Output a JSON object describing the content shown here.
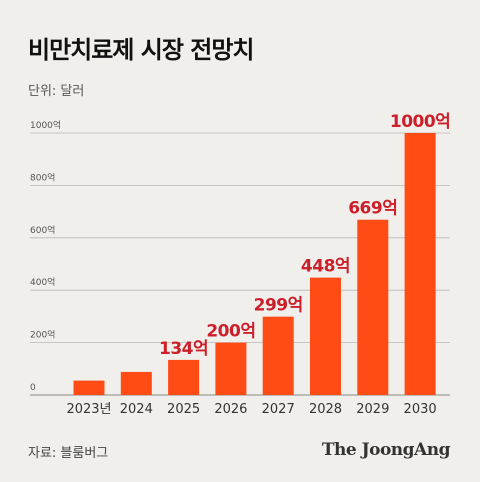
{
  "header": {
    "title": "비만치료제 시장 전망치",
    "unit": "단위: 달러"
  },
  "footer": {
    "source": "자료: 블룸버그",
    "logo_text": "The JoongAng"
  },
  "colors": {
    "bar": "#ff4c14",
    "value_label": "#cc1f2a",
    "grid": "#b8b8b8",
    "tick_text": "#555555",
    "category_text": "#333333"
  },
  "chart_data": {
    "type": "bar",
    "title": "비만치료제 시장 전망치",
    "ylabel": "단위: 달러",
    "xlabel": "",
    "categories": [
      "2023년",
      "2024",
      "2025",
      "2026",
      "2027",
      "2028",
      "2029",
      "2030"
    ],
    "values": [
      55,
      88,
      134,
      200,
      299,
      448,
      669,
      1000
    ],
    "value_labels": [
      null,
      null,
      "134억",
      "200억",
      "299억",
      "448억",
      "669억",
      "1000억"
    ],
    "ylim": [
      0,
      1000
    ],
    "yticks": [
      0,
      200,
      400,
      600,
      800,
      1000
    ],
    "ytick_labels": [
      "0",
      "200억",
      "400억",
      "600억",
      "800억",
      "1000억"
    ],
    "grid": true,
    "legend": "none"
  }
}
